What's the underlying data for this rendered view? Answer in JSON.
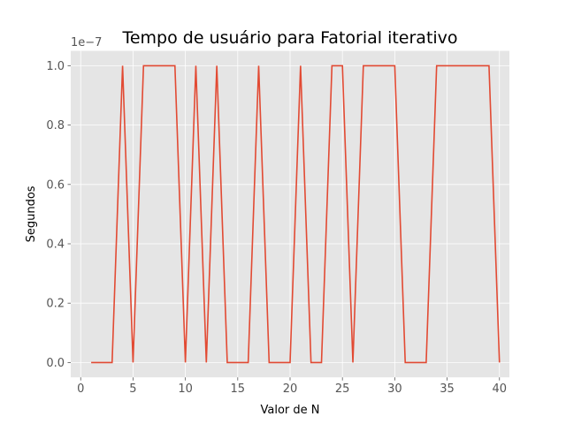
{
  "chart_data": {
    "type": "line",
    "title": "Tempo de usuário para Fatorial iterativo",
    "xlabel": "Valor de N",
    "ylabel": "Segundos",
    "y_offset_label": "1e−7",
    "y_scale_factor": 1e-07,
    "xlim": [
      -0.95,
      40.95
    ],
    "ylim": [
      -0.05,
      1.05
    ],
    "x_ticks": [
      0,
      5,
      10,
      15,
      20,
      25,
      30,
      35,
      40
    ],
    "x_tick_labels": [
      "0",
      "5",
      "10",
      "15",
      "20",
      "25",
      "30",
      "35",
      "40"
    ],
    "y_ticks": [
      0.0,
      0.2,
      0.4,
      0.6,
      0.8,
      1.0
    ],
    "y_tick_labels": [
      "0.0",
      "0.2",
      "0.4",
      "0.6",
      "0.8",
      "1.0"
    ],
    "grid": true,
    "colors": {
      "background": "#e5e5e5",
      "grid": "#ffffff",
      "line": "#e24a33"
    },
    "series": [
      {
        "x": [
          1,
          2,
          3,
          4,
          5,
          6,
          7,
          8,
          9,
          10,
          11,
          12,
          13,
          14,
          15,
          16,
          17,
          18,
          19,
          20,
          21,
          22,
          23,
          24,
          25,
          26,
          27,
          28,
          29,
          30,
          31,
          32,
          33,
          34,
          35,
          36,
          37,
          38,
          39,
          40
        ],
        "y": [
          0,
          0,
          0,
          1,
          0,
          1,
          1,
          1,
          1,
          0,
          1,
          0,
          1,
          0,
          0,
          0,
          1,
          0,
          0,
          0,
          1,
          0,
          0,
          1,
          1,
          0,
          1,
          1,
          1,
          1,
          0,
          0,
          0,
          1,
          1,
          1,
          1,
          1,
          1,
          0
        ]
      }
    ]
  }
}
